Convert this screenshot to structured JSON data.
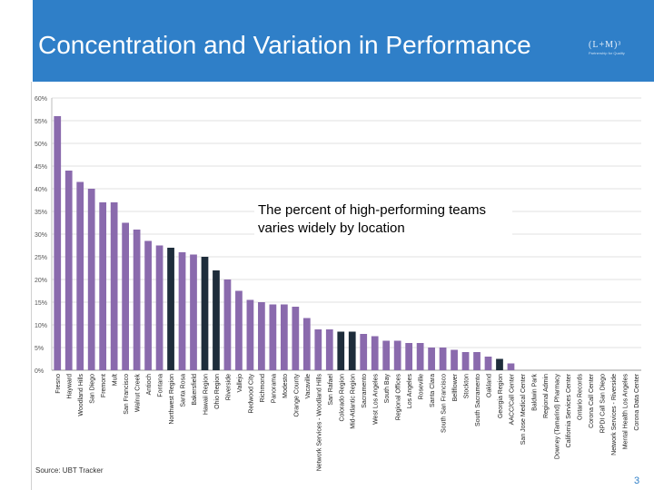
{
  "slide": {
    "title": "Concentration and Variation in Performance",
    "callout": "The percent of high-performing teams varies widely by location",
    "source": "Source: UBT Tracker",
    "page_number": "3",
    "logo_main": "(L+M)³",
    "logo_sub": "Partnership for Quality"
  },
  "colors": {
    "header_band": "#2f7fc8",
    "bar_regular": "#8a6aad",
    "bar_highlight": "#1e2d3b",
    "grid": "#e2e2e2"
  },
  "chart_data": {
    "type": "bar",
    "title": "",
    "xlabel": "",
    "ylabel": "",
    "ylim": [
      0,
      60
    ],
    "yticks": [
      0,
      5,
      10,
      15,
      20,
      25,
      30,
      35,
      40,
      45,
      50,
      55,
      60
    ],
    "ytick_labels": [
      "0%",
      "5%",
      "10%",
      "15%",
      "20%",
      "25%",
      "30%",
      "35%",
      "40%",
      "45%",
      "50%",
      "55%",
      "60%"
    ],
    "categories": [
      "Fresno",
      "Hayward",
      "Woodland Hills",
      "San Diego",
      "Fremont",
      "Mult",
      "San Francisco",
      "Walnut Creek",
      "Antioch",
      "Fontana",
      "Northwest Region",
      "Santa Rosa",
      "Bakersfield",
      "Hawaii Region",
      "Ohio Region",
      "Riverside",
      "Vallejo",
      "Redwood City",
      "Richmond",
      "Panorama",
      "Modesto",
      "Orange County",
      "Vacaville",
      "Network Services - Woodland Hills",
      "San Rafael",
      "Colorado Region",
      "Mid-Atlantic Region",
      "Sacramento",
      "West Los Angeles",
      "South Bay",
      "Regional Offices",
      "Los Angeles",
      "Roseville",
      "Santa Clara",
      "South San Francisco",
      "Bellflower",
      "Stockton",
      "South Sacramento",
      "Oakland",
      "Georgia Region",
      "AACC/Call Center",
      "San Jose Medical Center",
      "Baldwin Park",
      "Regional Admin",
      "Downey (Tamarind) Pharmacy",
      "California Services Center",
      "Ontario Records",
      "Corona Call Center",
      "RPDI Call San Diego",
      "Network Services - Riverside",
      "Mental Health Los Angeles",
      "Corona Data Center"
    ],
    "values": [
      56,
      44,
      41.5,
      40,
      37,
      37,
      32.5,
      31,
      28.5,
      27.5,
      27,
      26,
      25.5,
      25,
      22,
      20,
      17.5,
      15.5,
      15,
      14.5,
      14.5,
      14,
      11.5,
      9,
      9,
      8.5,
      8.5,
      8,
      7.5,
      6.5,
      6.5,
      6,
      6,
      5,
      5,
      4.5,
      4,
      4,
      3,
      2.5,
      1.5,
      0,
      0,
      0,
      0,
      0,
      0,
      0,
      0,
      0,
      0,
      0
    ],
    "highlighted": [
      "Northwest Region",
      "Hawaii Region",
      "Ohio Region",
      "Colorado Region",
      "Mid-Atlantic Region",
      "Georgia Region"
    ],
    "legend": "none",
    "grid": true
  }
}
